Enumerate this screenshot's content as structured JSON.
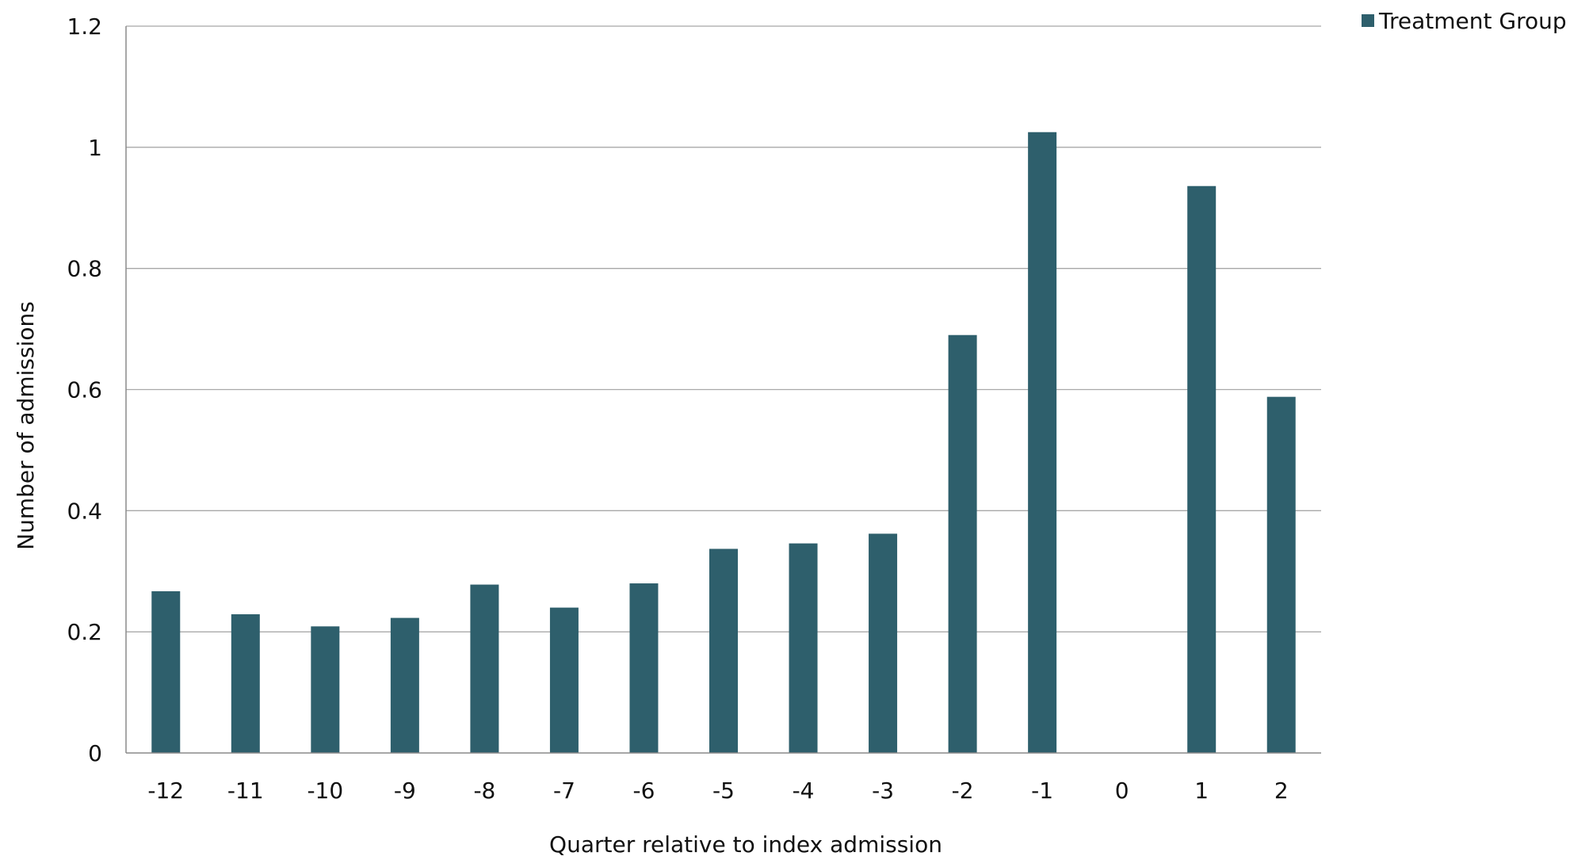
{
  "chart_data": {
    "type": "bar",
    "categories": [
      "-12",
      "-11",
      "-10",
      "-9",
      "-8",
      "-7",
      "-6",
      "-5",
      "-4",
      "-3",
      "-2",
      "-1",
      "0",
      "1",
      "2"
    ],
    "series": [
      {
        "name": "Treatment Group",
        "values": [
          0.267,
          0.229,
          0.209,
          0.223,
          0.278,
          0.24,
          0.28,
          0.337,
          0.346,
          0.362,
          0.69,
          1.025,
          0,
          0.936,
          0.588
        ]
      }
    ],
    "xlabel": "Quarter relative to index admission",
    "ylabel": "Number of admissions",
    "ylim": [
      0,
      1.2
    ],
    "yticks": [
      "0",
      "0.2",
      "0.4",
      "0.6",
      "0.8",
      "1",
      "1.2"
    ],
    "grid": true,
    "legend_position": "top-right",
    "colors": {
      "bar": "#2e5f6c"
    }
  }
}
